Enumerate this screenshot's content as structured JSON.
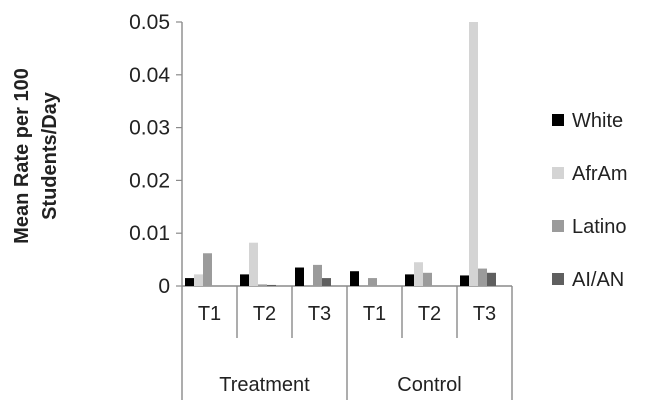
{
  "chart_data": {
    "type": "bar",
    "ylabel_lines": [
      "Mean Rate per 100",
      "Students/Day"
    ],
    "ylim": [
      0,
      0.05
    ],
    "yticks": [
      "0",
      "0.01",
      "0.02",
      "0.03",
      "0.04",
      "0.05"
    ],
    "groups": [
      {
        "label": "Treatment",
        "categories": [
          "T1",
          "T2",
          "T3"
        ]
      },
      {
        "label": "Control",
        "categories": [
          "T1",
          "T2",
          "T3"
        ]
      }
    ],
    "categories": [
      "T1",
      "T2",
      "T3",
      "T1",
      "T2",
      "T3"
    ],
    "series": [
      {
        "name": "White",
        "color": "#000000",
        "values": [
          0.0015,
          0.0022,
          0.0035,
          0.0028,
          0.0022,
          0.002
        ]
      },
      {
        "name": "AfrAm",
        "color": "#d4d4d4",
        "values": [
          0.0022,
          0.0082,
          0.0,
          0.0,
          0.0045,
          0.05
        ]
      },
      {
        "name": "Latino",
        "color": "#9b9b9b",
        "values": [
          0.0062,
          0.0003,
          0.004,
          0.0015,
          0.0025,
          0.0033
        ]
      },
      {
        "name": "AI/AN",
        "color": "#5f5f5f",
        "values": [
          0.0,
          0.0002,
          0.0015,
          0.0,
          0.0,
          0.0025
        ]
      }
    ],
    "legend_position": "right",
    "grid": false
  }
}
